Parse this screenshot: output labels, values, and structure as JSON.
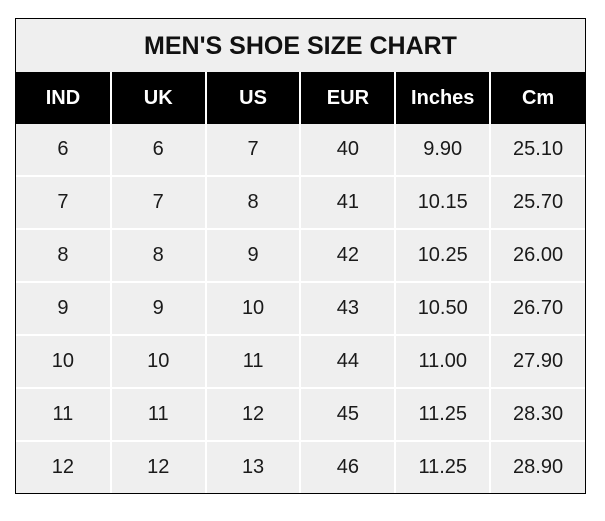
{
  "title": "MEN'S SHOE SIZE CHART",
  "columns": [
    "IND",
    "UK",
    "US",
    "EUR",
    "Inches",
    "Cm"
  ],
  "rows": [
    [
      "6",
      "6",
      "7",
      "40",
      "9.90",
      "25.10"
    ],
    [
      "7",
      "7",
      "8",
      "41",
      "10.15",
      "25.70"
    ],
    [
      "8",
      "8",
      "9",
      "42",
      "10.25",
      "26.00"
    ],
    [
      "9",
      "9",
      "10",
      "43",
      "10.50",
      "26.70"
    ],
    [
      "10",
      "10",
      "11",
      "44",
      "11.00",
      "27.90"
    ],
    [
      "11",
      "11",
      "12",
      "45",
      "11.25",
      "28.30"
    ],
    [
      "12",
      "12",
      "13",
      "46",
      "11.25",
      "28.90"
    ]
  ]
}
